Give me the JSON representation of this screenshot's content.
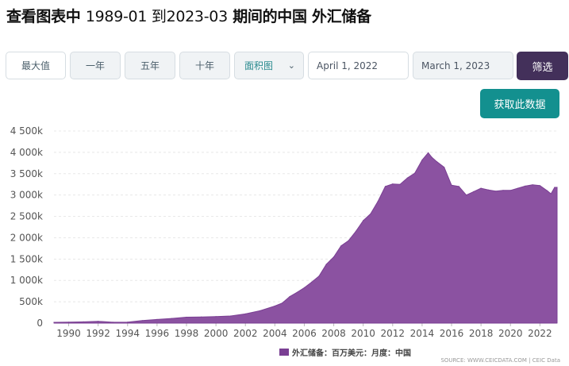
{
  "header": {
    "title_prefix": "查看图表中",
    "title_range": "1989-01 到2023-03",
    "title_suffix": "期间的中国 外汇储备"
  },
  "controls": {
    "max_label": "最大值",
    "one_year_label": "一年",
    "five_year_label": "五年",
    "ten_year_label": "十年",
    "chart_type_value": "面积图",
    "start_date": "April 1, 2022",
    "end_date": "March 1, 2023",
    "filter_label": "筛选",
    "fetch_label": "获取此数据"
  },
  "colors": {
    "area_fill": "#8b52a1",
    "area_stroke": "#7a3f93",
    "filter_button": "#43305a",
    "fetch_button": "#13908f"
  },
  "source_text": "SOURCE: WWW.CEICDATA.COM | CEIC Data",
  "chart_data": {
    "type": "area",
    "title": "",
    "xlabel": "",
    "ylabel": "",
    "grid": true,
    "legend_position": "bottom",
    "xlim": [
      "1989-01",
      "2023-03"
    ],
    "ylim": [
      0,
      4500000
    ],
    "y_ticks": [
      0,
      500000,
      1000000,
      1500000,
      2000000,
      2500000,
      3000000,
      3500000,
      4000000,
      4500000
    ],
    "y_tick_labels": [
      "0",
      "500k",
      "1 000k",
      "1 500k",
      "2 000k",
      "2 500k",
      "3 000k",
      "3 500k",
      "4 000k",
      "4 500k"
    ],
    "x_tick_labels": [
      "1990",
      "1992",
      "1994",
      "1996",
      "1998",
      "2000",
      "2002",
      "2004",
      "2006",
      "2008",
      "2010",
      "2012",
      "2014",
      "2016",
      "2018",
      "2020",
      "2022"
    ],
    "series": [
      {
        "name": "外汇储备：百万美元：月度：中国",
        "x": [
          "1989-01",
          "1990-01",
          "1991-01",
          "1992-01",
          "1993-01",
          "1994-01",
          "1995-01",
          "1996-01",
          "1997-01",
          "1998-01",
          "1999-01",
          "2000-01",
          "2001-01",
          "2002-01",
          "2003-01",
          "2004-01",
          "2004-07",
          "2005-01",
          "2005-07",
          "2006-01",
          "2006-07",
          "2007-01",
          "2007-07",
          "2008-01",
          "2008-07",
          "2009-01",
          "2009-07",
          "2010-01",
          "2010-07",
          "2011-01",
          "2011-07",
          "2012-01",
          "2012-07",
          "2013-01",
          "2013-07",
          "2014-01",
          "2014-06",
          "2014-09",
          "2015-01",
          "2015-07",
          "2016-01",
          "2016-07",
          "2017-01",
          "2017-07",
          "2018-01",
          "2018-07",
          "2019-01",
          "2019-07",
          "2020-01",
          "2020-07",
          "2021-01",
          "2021-07",
          "2022-01",
          "2022-07",
          "2022-10",
          "2023-01",
          "2023-03"
        ],
        "values": [
          18000,
          22000,
          30000,
          42000,
          21000,
          25000,
          60000,
          85000,
          110000,
          140000,
          145000,
          155000,
          168000,
          215000,
          290000,
          400000,
          470000,
          620000,
          720000,
          830000,
          960000,
          1100000,
          1380000,
          1550000,
          1810000,
          1930000,
          2150000,
          2400000,
          2560000,
          2850000,
          3200000,
          3260000,
          3250000,
          3400000,
          3510000,
          3820000,
          3990000,
          3880000,
          3780000,
          3650000,
          3230000,
          3200000,
          3000000,
          3080000,
          3160000,
          3120000,
          3090000,
          3110000,
          3110000,
          3160000,
          3210000,
          3240000,
          3220000,
          3100000,
          3030000,
          3180000,
          3180000
        ]
      }
    ]
  }
}
